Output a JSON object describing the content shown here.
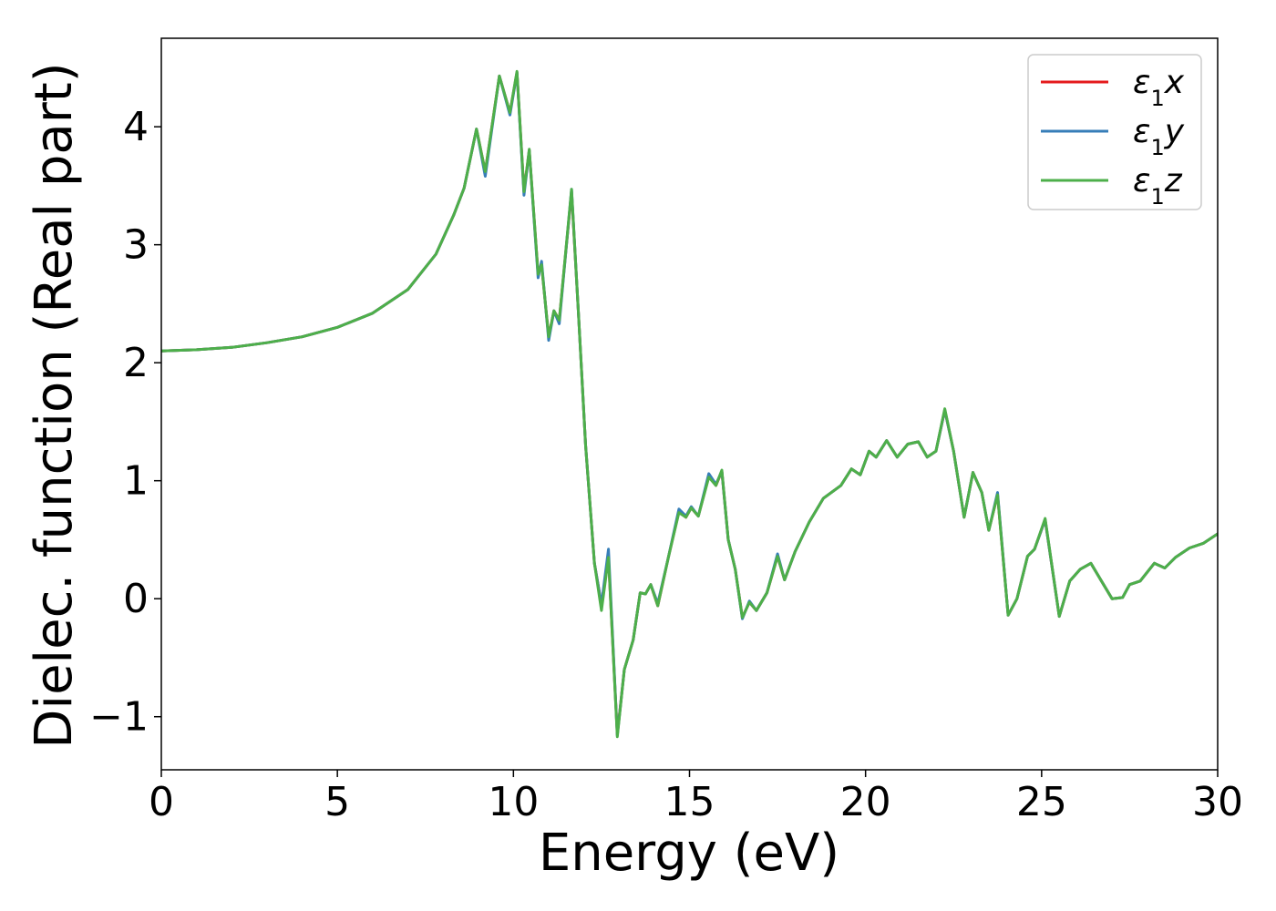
{
  "chart_data": {
    "type": "line",
    "title": "",
    "xlabel": "Energy (eV)",
    "ylabel": "Dielec. function (Real part)",
    "xlim": [
      0,
      30
    ],
    "ylim": [
      -1.45,
      4.75
    ],
    "x_ticks": [
      0,
      5,
      10,
      15,
      20,
      25,
      30
    ],
    "y_ticks": [
      -1,
      0,
      1,
      2,
      3,
      4
    ],
    "x_tick_labels": [
      "0",
      "5",
      "10",
      "15",
      "20",
      "25",
      "30"
    ],
    "y_tick_labels": [
      "−1",
      "0",
      "1",
      "2",
      "3",
      "4"
    ],
    "grid": false,
    "legend_position": "top-right",
    "series": [
      {
        "name": "ε₁x",
        "legend_base": "ε",
        "legend_sub": "1",
        "legend_suffix": "x",
        "color": "#e41a1c",
        "points": [
          [
            0,
            2.1
          ],
          [
            1,
            2.11
          ],
          [
            2,
            2.13
          ],
          [
            3,
            2.17
          ],
          [
            4,
            2.22
          ],
          [
            5,
            2.3
          ],
          [
            6,
            2.42
          ],
          [
            7,
            2.62
          ],
          [
            7.8,
            2.92
          ],
          [
            8.3,
            3.25
          ],
          [
            8.6,
            3.48
          ],
          [
            8.95,
            3.98
          ],
          [
            9.2,
            3.62
          ],
          [
            9.6,
            4.43
          ],
          [
            9.9,
            4.12
          ],
          [
            10.1,
            4.46
          ],
          [
            10.3,
            3.45
          ],
          [
            10.45,
            3.8
          ],
          [
            10.7,
            2.75
          ],
          [
            10.8,
            2.83
          ],
          [
            11,
            2.22
          ],
          [
            11.15,
            2.44
          ],
          [
            11.3,
            2.36
          ],
          [
            11.65,
            3.45
          ],
          [
            11.85,
            2.4
          ],
          [
            12.05,
            1.3
          ],
          [
            12.3,
            0.3
          ],
          [
            12.5,
            -0.05
          ],
          [
            12.7,
            0.35
          ],
          [
            12.95,
            -1.15
          ],
          [
            13.15,
            -0.6
          ],
          [
            13.4,
            -0.35
          ],
          [
            13.6,
            0.05
          ],
          [
            13.75,
            0.04
          ],
          [
            13.9,
            0.12
          ],
          [
            14.1,
            -0.06
          ],
          [
            14.4,
            0.35
          ],
          [
            14.7,
            0.74
          ],
          [
            14.9,
            0.69
          ],
          [
            15.05,
            0.77
          ],
          [
            15.25,
            0.7
          ],
          [
            15.55,
            1.04
          ],
          [
            15.75,
            0.96
          ],
          [
            15.92,
            1.08
          ],
          [
            16.1,
            0.5
          ],
          [
            16.3,
            0.25
          ],
          [
            16.5,
            -0.16
          ],
          [
            16.7,
            -0.03
          ],
          [
            16.9,
            -0.1
          ],
          [
            17.2,
            0.05
          ],
          [
            17.5,
            0.36
          ],
          [
            17.7,
            0.16
          ],
          [
            18,
            0.4
          ],
          [
            18.4,
            0.65
          ],
          [
            18.8,
            0.85
          ],
          [
            19.3,
            0.96
          ],
          [
            19.6,
            1.1
          ],
          [
            19.85,
            1.05
          ],
          [
            20.1,
            1.25
          ],
          [
            20.3,
            1.2
          ],
          [
            20.6,
            1.34
          ],
          [
            20.9,
            1.2
          ],
          [
            21.2,
            1.31
          ],
          [
            21.5,
            1.33
          ],
          [
            21.75,
            1.2
          ],
          [
            22,
            1.25
          ],
          [
            22.25,
            1.6
          ],
          [
            22.5,
            1.25
          ],
          [
            22.8,
            0.69
          ],
          [
            23.05,
            1.07
          ],
          [
            23.3,
            0.9
          ],
          [
            23.5,
            0.58
          ],
          [
            23.75,
            0.88
          ],
          [
            24.05,
            -0.14
          ],
          [
            24.3,
            0.0
          ],
          [
            24.6,
            0.36
          ],
          [
            24.8,
            0.42
          ],
          [
            25.1,
            0.67
          ],
          [
            25.5,
            -0.15
          ],
          [
            25.8,
            0.15
          ],
          [
            26.1,
            0.25
          ],
          [
            26.4,
            0.3
          ],
          [
            26.7,
            0.15
          ],
          [
            27,
            0.0
          ],
          [
            27.3,
            0.01
          ],
          [
            27.5,
            0.12
          ],
          [
            27.8,
            0.15
          ],
          [
            28.2,
            0.3
          ],
          [
            28.5,
            0.26
          ],
          [
            28.8,
            0.35
          ],
          [
            29.2,
            0.43
          ],
          [
            29.6,
            0.47
          ],
          [
            30,
            0.55
          ]
        ]
      },
      {
        "name": "ε₁y",
        "legend_base": "ε",
        "legend_sub": "1",
        "legend_suffix": "y",
        "color": "#377eb8",
        "points": [
          [
            0,
            2.1
          ],
          [
            1,
            2.11
          ],
          [
            2,
            2.13
          ],
          [
            3,
            2.17
          ],
          [
            4,
            2.22
          ],
          [
            5,
            2.3
          ],
          [
            6,
            2.42
          ],
          [
            7,
            2.62
          ],
          [
            7.8,
            2.92
          ],
          [
            8.3,
            3.25
          ],
          [
            8.6,
            3.48
          ],
          [
            8.95,
            3.98
          ],
          [
            9.2,
            3.58
          ],
          [
            9.6,
            4.43
          ],
          [
            9.9,
            4.1
          ],
          [
            10.1,
            4.46
          ],
          [
            10.3,
            3.42
          ],
          [
            10.45,
            3.8
          ],
          [
            10.7,
            2.72
          ],
          [
            10.8,
            2.86
          ],
          [
            11,
            2.19
          ],
          [
            11.15,
            2.44
          ],
          [
            11.3,
            2.33
          ],
          [
            11.65,
            3.47
          ],
          [
            11.85,
            2.4
          ],
          [
            12.05,
            1.3
          ],
          [
            12.3,
            0.3
          ],
          [
            12.5,
            -0.05
          ],
          [
            12.7,
            0.42
          ],
          [
            12.95,
            -1.16
          ],
          [
            13.15,
            -0.6
          ],
          [
            13.4,
            -0.35
          ],
          [
            13.6,
            0.05
          ],
          [
            13.75,
            0.04
          ],
          [
            13.9,
            0.12
          ],
          [
            14.1,
            -0.04
          ],
          [
            14.4,
            0.35
          ],
          [
            14.7,
            0.76
          ],
          [
            14.9,
            0.7
          ],
          [
            15.05,
            0.78
          ],
          [
            15.25,
            0.7
          ],
          [
            15.55,
            1.06
          ],
          [
            15.75,
            0.97
          ],
          [
            15.92,
            1.08
          ],
          [
            16.1,
            0.5
          ],
          [
            16.3,
            0.25
          ],
          [
            16.5,
            -0.17
          ],
          [
            16.7,
            -0.02
          ],
          [
            16.9,
            -0.1
          ],
          [
            17.2,
            0.05
          ],
          [
            17.5,
            0.38
          ],
          [
            17.7,
            0.16
          ],
          [
            18,
            0.4
          ],
          [
            18.4,
            0.65
          ],
          [
            18.8,
            0.85
          ],
          [
            19.3,
            0.96
          ],
          [
            19.6,
            1.1
          ],
          [
            19.85,
            1.05
          ],
          [
            20.1,
            1.25
          ],
          [
            20.3,
            1.2
          ],
          [
            20.6,
            1.34
          ],
          [
            20.9,
            1.2
          ],
          [
            21.2,
            1.31
          ],
          [
            21.5,
            1.33
          ],
          [
            21.75,
            1.2
          ],
          [
            22,
            1.25
          ],
          [
            22.25,
            1.6
          ],
          [
            22.5,
            1.25
          ],
          [
            22.8,
            0.69
          ],
          [
            23.05,
            1.07
          ],
          [
            23.3,
            0.9
          ],
          [
            23.5,
            0.58
          ],
          [
            23.75,
            0.9
          ],
          [
            24.05,
            -0.14
          ],
          [
            24.3,
            0.0
          ],
          [
            24.6,
            0.36
          ],
          [
            24.8,
            0.42
          ],
          [
            25.1,
            0.67
          ],
          [
            25.5,
            -0.15
          ],
          [
            25.8,
            0.15
          ],
          [
            26.1,
            0.25
          ],
          [
            26.4,
            0.3
          ],
          [
            26.7,
            0.15
          ],
          [
            27,
            0.0
          ],
          [
            27.3,
            0.01
          ],
          [
            27.5,
            0.12
          ],
          [
            27.8,
            0.15
          ],
          [
            28.2,
            0.3
          ],
          [
            28.5,
            0.26
          ],
          [
            28.8,
            0.35
          ],
          [
            29.2,
            0.43
          ],
          [
            29.6,
            0.47
          ],
          [
            30,
            0.55
          ]
        ]
      },
      {
        "name": "ε₁z",
        "legend_base": "ε",
        "legend_sub": "1",
        "legend_suffix": "z",
        "color": "#4daf4a",
        "points": [
          [
            0,
            2.1
          ],
          [
            1,
            2.11
          ],
          [
            2,
            2.13
          ],
          [
            3,
            2.17
          ],
          [
            4,
            2.22
          ],
          [
            5,
            2.3
          ],
          [
            6,
            2.42
          ],
          [
            7,
            2.62
          ],
          [
            7.8,
            2.92
          ],
          [
            8.3,
            3.25
          ],
          [
            8.6,
            3.48
          ],
          [
            8.95,
            3.98
          ],
          [
            9.2,
            3.62
          ],
          [
            9.6,
            4.43
          ],
          [
            9.9,
            4.12
          ],
          [
            10.1,
            4.47
          ],
          [
            10.3,
            3.45
          ],
          [
            10.45,
            3.81
          ],
          [
            10.7,
            2.75
          ],
          [
            10.8,
            2.83
          ],
          [
            11,
            2.22
          ],
          [
            11.15,
            2.44
          ],
          [
            11.3,
            2.36
          ],
          [
            11.65,
            3.47
          ],
          [
            11.85,
            2.4
          ],
          [
            12.05,
            1.3
          ],
          [
            12.3,
            0.3
          ],
          [
            12.5,
            -0.1
          ],
          [
            12.7,
            0.35
          ],
          [
            12.95,
            -1.17
          ],
          [
            13.15,
            -0.6
          ],
          [
            13.4,
            -0.35
          ],
          [
            13.6,
            0.05
          ],
          [
            13.75,
            0.04
          ],
          [
            13.9,
            0.12
          ],
          [
            14.1,
            -0.06
          ],
          [
            14.4,
            0.35
          ],
          [
            14.7,
            0.73
          ],
          [
            14.9,
            0.69
          ],
          [
            15.05,
            0.77
          ],
          [
            15.25,
            0.7
          ],
          [
            15.55,
            1.03
          ],
          [
            15.75,
            0.96
          ],
          [
            15.92,
            1.09
          ],
          [
            16.1,
            0.5
          ],
          [
            16.3,
            0.25
          ],
          [
            16.5,
            -0.16
          ],
          [
            16.7,
            -0.03
          ],
          [
            16.9,
            -0.1
          ],
          [
            17.2,
            0.05
          ],
          [
            17.5,
            0.36
          ],
          [
            17.7,
            0.16
          ],
          [
            18,
            0.4
          ],
          [
            18.4,
            0.65
          ],
          [
            18.8,
            0.85
          ],
          [
            19.3,
            0.96
          ],
          [
            19.6,
            1.1
          ],
          [
            19.85,
            1.05
          ],
          [
            20.1,
            1.25
          ],
          [
            20.3,
            1.2
          ],
          [
            20.6,
            1.34
          ],
          [
            20.9,
            1.2
          ],
          [
            21.2,
            1.31
          ],
          [
            21.5,
            1.33
          ],
          [
            21.75,
            1.2
          ],
          [
            22,
            1.25
          ],
          [
            22.25,
            1.61
          ],
          [
            22.5,
            1.25
          ],
          [
            22.8,
            0.69
          ],
          [
            23.05,
            1.07
          ],
          [
            23.3,
            0.9
          ],
          [
            23.5,
            0.58
          ],
          [
            23.75,
            0.88
          ],
          [
            24.05,
            -0.14
          ],
          [
            24.3,
            0.0
          ],
          [
            24.6,
            0.36
          ],
          [
            24.8,
            0.42
          ],
          [
            25.1,
            0.68
          ],
          [
            25.5,
            -0.15
          ],
          [
            25.8,
            0.15
          ],
          [
            26.1,
            0.25
          ],
          [
            26.4,
            0.3
          ],
          [
            26.7,
            0.15
          ],
          [
            27,
            0.0
          ],
          [
            27.3,
            0.01
          ],
          [
            27.5,
            0.12
          ],
          [
            27.8,
            0.15
          ],
          [
            28.2,
            0.3
          ],
          [
            28.5,
            0.26
          ],
          [
            28.8,
            0.35
          ],
          [
            29.2,
            0.43
          ],
          [
            29.6,
            0.47
          ],
          [
            30,
            0.55
          ]
        ]
      }
    ]
  }
}
